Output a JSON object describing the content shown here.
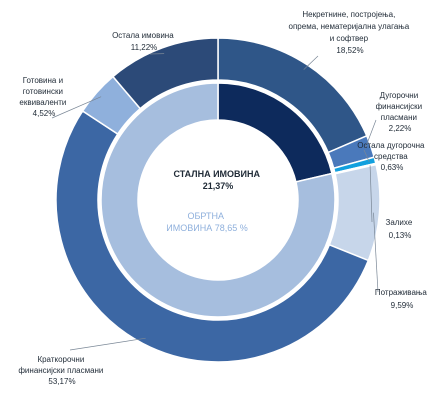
{
  "chart_data": {
    "type": "pie",
    "subtype": "nested-donut",
    "inner_ring": [
      {
        "label": "СТАЛНА ИМОВИНА",
        "value": 21.37,
        "value_text": "21,37%",
        "color": "#0d2a5c"
      },
      {
        "label": "ОБРТНА ИМОВИНА",
        "value": 78.65,
        "value_text": "78,65 %",
        "color": "#a6bede"
      }
    ],
    "outer_ring": [
      {
        "label_lines": [
          "Некретнине, постројења,",
          "опрема, нематеријална улагања",
          "и софтвер"
        ],
        "value": 18.52,
        "value_text": "18,52%",
        "color": "#2f5688",
        "group": 0
      },
      {
        "label_lines": [
          "Дугорочни",
          "финансијски",
          "пласмани"
        ],
        "value": 2.22,
        "value_text": "2,22%",
        "color": "#4a79bb",
        "group": 0
      },
      {
        "label_lines": [
          "Остала дугорочна",
          "средства"
        ],
        "value": 0.63,
        "value_text": "0,63%",
        "color": "#12a0de",
        "group": 0
      },
      {
        "label_lines": [
          "Залихе"
        ],
        "value": 0.13,
        "value_text": "0,13%",
        "color": "#6f95c9",
        "group": 1
      },
      {
        "label_lines": [
          "Потраживања"
        ],
        "value": 9.59,
        "value_text": "9,59%",
        "color": "#c7d6ea",
        "group": 1
      },
      {
        "label_lines": [
          "Краткорочни",
          "финансијски пласмани"
        ],
        "value": 53.17,
        "value_text": "53,17%",
        "color": "#3c67a4",
        "group": 1
      },
      {
        "label_lines": [
          "Готовина и",
          "готовински",
          "еквиваленти"
        ],
        "value": 4.52,
        "value_text": "4,52%",
        "color": "#8fb0dc",
        "group": 1
      },
      {
        "label_lines": [
          "Остала имовина"
        ],
        "value": 11.22,
        "value_text": "11,22%",
        "color": "#2c4a78",
        "group": 1
      }
    ]
  }
}
